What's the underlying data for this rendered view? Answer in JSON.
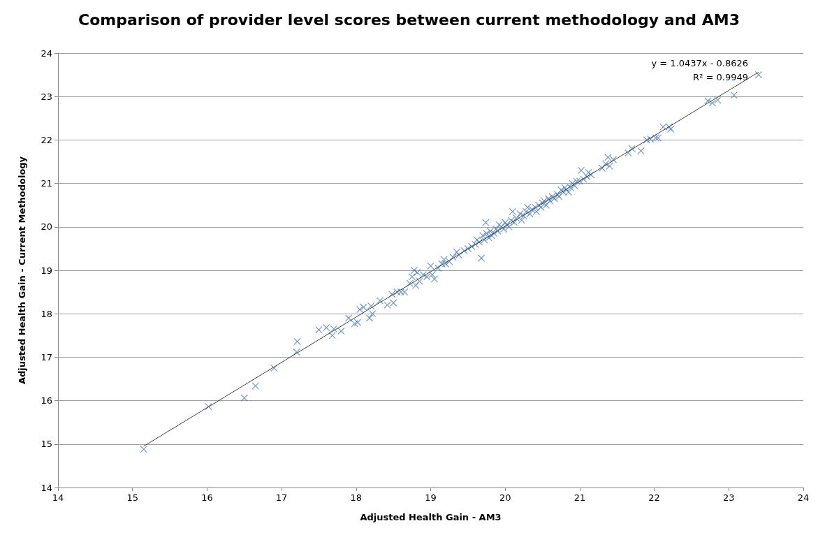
{
  "chart_data": {
    "type": "scatter",
    "title": "Comparison of provider level scores between current methodology and AM3",
    "xlabel": "Adjusted Health Gain - AM3",
    "ylabel": "Adjusted Health Gain - Current Methodology",
    "xlim": [
      14,
      24
    ],
    "xticks": [
      14,
      15,
      16,
      17,
      18,
      19,
      20,
      21,
      22,
      23,
      24
    ],
    "ylim": [
      14,
      24
    ],
    "yticks": [
      14,
      15,
      16,
      17,
      18,
      19,
      20,
      21,
      22,
      23,
      24
    ],
    "grid": "y",
    "marker": "cross",
    "annotations": [
      "y = 1.0437x - 0.8626",
      "R² = 0.9949"
    ],
    "series": [
      {
        "color": "#4a7ebb",
        "x": [
          15.15,
          16.02,
          16.5,
          16.65,
          16.9,
          17.2,
          17.21,
          17.5,
          17.6,
          17.68,
          17.7,
          17.8,
          17.9,
          17.98,
          18.02,
          18.05,
          18.1,
          18.18,
          18.2,
          18.22,
          18.32,
          18.42,
          18.48,
          18.5,
          18.55,
          18.6,
          18.65,
          18.72,
          18.75,
          18.78,
          18.8,
          18.82,
          18.85,
          18.9,
          18.95,
          19.0,
          19.02,
          19.05,
          19.1,
          19.15,
          19.18,
          19.2,
          19.25,
          19.3,
          19.35,
          19.38,
          19.45,
          19.5,
          19.55,
          19.6,
          19.62,
          19.65,
          19.68,
          19.7,
          19.72,
          19.74,
          19.75,
          19.78,
          19.8,
          19.82,
          19.85,
          19.88,
          19.9,
          19.92,
          19.95,
          19.98,
          20.0,
          20.02,
          20.05,
          20.08,
          20.1,
          20.12,
          20.15,
          20.2,
          20.22,
          20.25,
          20.28,
          20.3,
          20.33,
          20.36,
          20.4,
          20.42,
          20.45,
          20.48,
          20.5,
          20.52,
          20.55,
          20.58,
          20.6,
          20.63,
          20.66,
          20.7,
          20.72,
          20.75,
          20.78,
          20.8,
          20.82,
          20.85,
          20.88,
          20.9,
          20.93,
          20.96,
          21.0,
          21.02,
          21.05,
          21.1,
          21.12,
          21.15,
          21.3,
          21.35,
          21.38,
          21.4,
          21.45,
          21.65,
          21.7,
          21.82,
          21.9,
          21.95,
          22.02,
          22.05,
          22.12,
          22.2,
          22.22,
          22.72,
          22.78,
          22.85,
          23.07,
          23.4
        ],
        "values": [
          14.88,
          15.86,
          16.06,
          16.34,
          16.75,
          17.12,
          17.36,
          17.63,
          17.68,
          17.5,
          17.65,
          17.6,
          17.9,
          17.77,
          17.8,
          18.1,
          18.15,
          17.9,
          18.18,
          18.0,
          18.3,
          18.2,
          18.45,
          18.25,
          18.5,
          18.5,
          18.5,
          18.7,
          18.85,
          19.0,
          18.65,
          18.95,
          18.75,
          18.9,
          18.85,
          19.1,
          18.9,
          18.8,
          19.05,
          19.15,
          19.25,
          19.15,
          19.2,
          19.3,
          19.42,
          19.35,
          19.45,
          19.5,
          19.55,
          19.6,
          19.7,
          19.65,
          19.28,
          19.8,
          19.7,
          20.1,
          19.85,
          19.75,
          19.9,
          19.8,
          19.85,
          19.95,
          19.9,
          20.05,
          20.0,
          19.95,
          20.1,
          20.05,
          20.0,
          20.15,
          20.35,
          20.1,
          20.2,
          20.3,
          20.15,
          20.25,
          20.35,
          20.45,
          20.3,
          20.4,
          20.45,
          20.35,
          20.5,
          20.45,
          20.55,
          20.6,
          20.5,
          20.65,
          20.6,
          20.7,
          20.65,
          20.75,
          20.7,
          20.85,
          20.8,
          20.9,
          20.85,
          20.8,
          20.9,
          21.0,
          20.95,
          21.05,
          21.05,
          21.3,
          21.1,
          21.15,
          21.25,
          21.2,
          21.35,
          21.45,
          21.6,
          21.4,
          21.55,
          21.7,
          21.8,
          21.75,
          22.0,
          22.02,
          22.05,
          22.05,
          22.3,
          22.3,
          22.25,
          22.9,
          22.85,
          22.92,
          23.03,
          23.5
        ]
      },
      {
        "type": "line",
        "color": "#404040",
        "marker": "none",
        "x": [
          15.15,
          23.4
        ],
        "values": [
          14.95,
          23.56
        ]
      }
    ]
  }
}
